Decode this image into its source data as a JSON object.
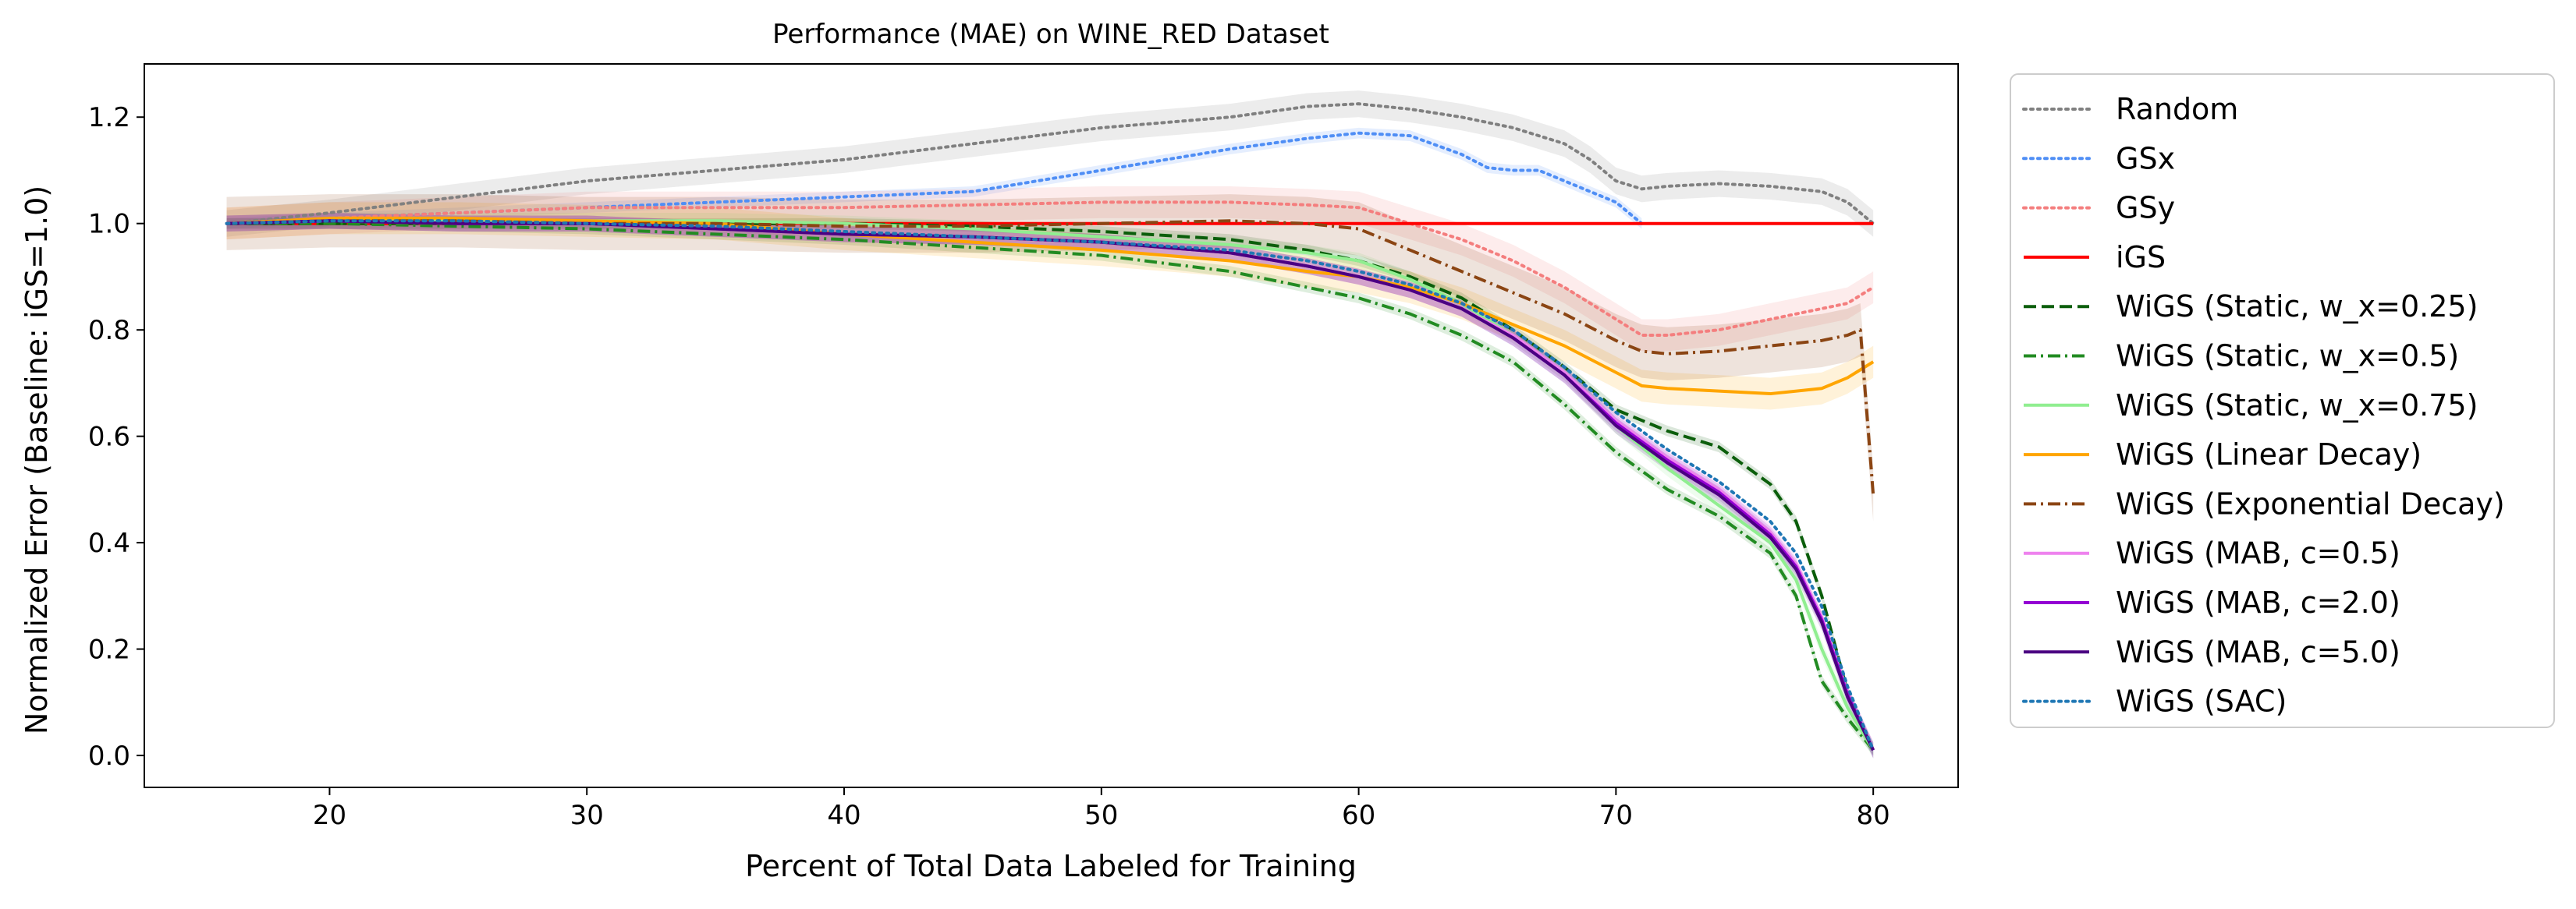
{
  "chart_data": {
    "type": "line",
    "title": "Performance (MAE) on WINE_RED Dataset",
    "xlabel": "Percent of Total Data Labeled for Training",
    "ylabel": "Normalized Error (Baseline: iGS=1.0)",
    "xlim": [
      12.8,
      83.3
    ],
    "ylim": [
      -0.06,
      1.3
    ],
    "xticks": [
      20,
      30,
      40,
      50,
      60,
      70,
      80
    ],
    "xtick_labels": [
      "20",
      "30",
      "40",
      "50",
      "60",
      "70",
      "80"
    ],
    "yticks": [
      0.0,
      0.2,
      0.4,
      0.6,
      0.8,
      1.0,
      1.2
    ],
    "ytick_labels": [
      "0.0",
      "0.2",
      "0.4",
      "0.6",
      "0.8",
      "1.0",
      "1.2"
    ],
    "grid": false,
    "legend_position": "outside-right",
    "series": [
      {
        "name": "Random",
        "color": "#808080",
        "style": "dotted",
        "band": 0.025,
        "x": [
          16,
          20,
          25,
          30,
          35,
          40,
          45,
          50,
          55,
          58,
          60,
          62,
          64,
          66,
          68,
          69,
          70,
          71,
          72,
          74,
          76,
          78,
          79,
          80
        ],
        "y": [
          1.0,
          1.02,
          1.05,
          1.08,
          1.1,
          1.12,
          1.15,
          1.18,
          1.2,
          1.22,
          1.225,
          1.215,
          1.2,
          1.18,
          1.15,
          1.12,
          1.08,
          1.065,
          1.07,
          1.075,
          1.07,
          1.06,
          1.04,
          1.0
        ]
      },
      {
        "name": "GSx",
        "color": "#4f8ef5",
        "style": "dotted",
        "band": 0.01,
        "x": [
          16,
          20,
          25,
          30,
          35,
          40,
          45,
          50,
          55,
          58,
          60,
          62,
          64,
          65,
          66,
          67,
          68,
          69,
          70,
          71
        ],
        "y": [
          1.0,
          1.01,
          1.02,
          1.03,
          1.04,
          1.05,
          1.06,
          1.1,
          1.14,
          1.16,
          1.17,
          1.165,
          1.13,
          1.105,
          1.1,
          1.1,
          1.08,
          1.06,
          1.04,
          1.0
        ]
      },
      {
        "name": "GSy",
        "color": "#f47e7e",
        "style": "dotted",
        "band": 0.03,
        "x": [
          16,
          20,
          25,
          30,
          35,
          40,
          45,
          50,
          55,
          58,
          60,
          62,
          64,
          66,
          68,
          70,
          71,
          72,
          74,
          76,
          78,
          79,
          80
        ],
        "y": [
          1.0,
          1.01,
          1.02,
          1.03,
          1.03,
          1.03,
          1.035,
          1.04,
          1.04,
          1.035,
          1.03,
          1.0,
          0.97,
          0.93,
          0.88,
          0.82,
          0.79,
          0.79,
          0.8,
          0.82,
          0.84,
          0.85,
          0.88
        ]
      },
      {
        "name": "iGS",
        "color": "#ff0000",
        "style": "solid",
        "band": 0,
        "x": [
          16,
          80
        ],
        "y": [
          1.0,
          1.0
        ]
      },
      {
        "name": "WiGS (Static, w_x=0.25)",
        "color": "#0b5e0b",
        "style": "dashed",
        "band": 0.01,
        "x": [
          16,
          20,
          25,
          30,
          35,
          40,
          45,
          50,
          55,
          58,
          60,
          62,
          64,
          66,
          68,
          70,
          72,
          74,
          76,
          77,
          78,
          79,
          80
        ],
        "y": [
          1.0,
          1.0,
          1.0,
          1.0,
          1.0,
          1.0,
          0.995,
          0.985,
          0.97,
          0.95,
          0.93,
          0.9,
          0.86,
          0.8,
          0.73,
          0.65,
          0.61,
          0.58,
          0.51,
          0.44,
          0.3,
          0.12,
          0.01
        ]
      },
      {
        "name": "WiGS (Static, w_x=0.5)",
        "color": "#228b22",
        "style": "dashdot",
        "band": 0.01,
        "x": [
          16,
          20,
          25,
          30,
          35,
          40,
          45,
          50,
          55,
          58,
          60,
          62,
          64,
          66,
          68,
          70,
          72,
          74,
          76,
          77,
          78,
          79,
          80
        ],
        "y": [
          1.0,
          1.0,
          0.995,
          0.99,
          0.98,
          0.97,
          0.955,
          0.94,
          0.91,
          0.88,
          0.86,
          0.83,
          0.79,
          0.74,
          0.66,
          0.57,
          0.5,
          0.45,
          0.38,
          0.3,
          0.14,
          0.07,
          0.01
        ]
      },
      {
        "name": "WiGS (Static, w_x=0.75)",
        "color": "#90ee90",
        "style": "solid",
        "band": 0.015,
        "x": [
          16,
          20,
          25,
          30,
          35,
          40,
          45,
          50,
          55,
          58,
          60,
          62,
          64,
          66,
          68,
          70,
          72,
          74,
          76,
          77,
          78,
          79,
          80
        ],
        "y": [
          1.0,
          1.005,
          1.005,
          1.005,
          1.005,
          1.0,
          0.99,
          0.975,
          0.96,
          0.945,
          0.93,
          0.895,
          0.85,
          0.79,
          0.72,
          0.62,
          0.54,
          0.47,
          0.4,
          0.33,
          0.2,
          0.09,
          0.01
        ]
      },
      {
        "name": "WiGS (Linear Decay)",
        "color": "#ffa500",
        "style": "solid",
        "band": 0.03,
        "x": [
          16,
          20,
          25,
          30,
          35,
          40,
          45,
          50,
          55,
          58,
          60,
          62,
          64,
          66,
          68,
          70,
          71,
          72,
          74,
          76,
          78,
          79,
          80
        ],
        "y": [
          1.0,
          1.01,
          1.01,
          1.005,
          1.0,
          0.98,
          0.965,
          0.95,
          0.93,
          0.91,
          0.9,
          0.88,
          0.85,
          0.81,
          0.77,
          0.72,
          0.695,
          0.69,
          0.685,
          0.68,
          0.69,
          0.71,
          0.74
        ]
      },
      {
        "name": "WiGS (Exponential Decay)",
        "color": "#8b4513",
        "style": "dashdot",
        "band": 0.05,
        "x": [
          16,
          20,
          25,
          30,
          35,
          40,
          45,
          50,
          55,
          58,
          60,
          62,
          64,
          66,
          68,
          70,
          71,
          72,
          74,
          76,
          78,
          79,
          79.5,
          80
        ],
        "y": [
          1.0,
          1.005,
          1.005,
          1.0,
          1.0,
          0.995,
          0.995,
          1.0,
          1.005,
          1.0,
          0.99,
          0.95,
          0.91,
          0.87,
          0.83,
          0.78,
          0.76,
          0.755,
          0.76,
          0.77,
          0.78,
          0.79,
          0.8,
          0.49
        ]
      },
      {
        "name": "WiGS (MAB, c=0.5)",
        "color": "#ee82ee",
        "style": "solid",
        "band": 0.015,
        "x": [
          16,
          20,
          25,
          30,
          35,
          40,
          45,
          50,
          55,
          58,
          60,
          62,
          64,
          66,
          68,
          70,
          72,
          74,
          76,
          77,
          78,
          79,
          80
        ],
        "y": [
          1.0,
          1.005,
          1.0,
          1.0,
          0.99,
          0.98,
          0.975,
          0.965,
          0.945,
          0.92,
          0.9,
          0.875,
          0.84,
          0.79,
          0.72,
          0.63,
          0.56,
          0.5,
          0.42,
          0.36,
          0.26,
          0.12,
          0.01
        ]
      },
      {
        "name": "WiGS (MAB, c=2.0)",
        "color": "#9400d3",
        "style": "solid",
        "band": 0.015,
        "x": [
          16,
          20,
          25,
          30,
          35,
          40,
          45,
          50,
          55,
          58,
          60,
          62,
          64,
          66,
          68,
          70,
          72,
          74,
          76,
          77,
          78,
          79,
          80
        ],
        "y": [
          1.0,
          1.005,
          1.0,
          1.0,
          0.99,
          0.98,
          0.975,
          0.965,
          0.945,
          0.92,
          0.9,
          0.875,
          0.84,
          0.785,
          0.715,
          0.625,
          0.555,
          0.495,
          0.415,
          0.355,
          0.255,
          0.115,
          0.01
        ]
      },
      {
        "name": "WiGS (MAB, c=5.0)",
        "color": "#4b0082",
        "style": "solid",
        "band": 0.015,
        "x": [
          16,
          20,
          25,
          30,
          35,
          40,
          45,
          50,
          55,
          58,
          60,
          62,
          64,
          66,
          68,
          70,
          72,
          74,
          76,
          77,
          78,
          79,
          80
        ],
        "y": [
          1.0,
          1.005,
          1.0,
          1.0,
          0.99,
          0.98,
          0.975,
          0.965,
          0.945,
          0.92,
          0.9,
          0.875,
          0.84,
          0.785,
          0.715,
          0.62,
          0.55,
          0.49,
          0.41,
          0.35,
          0.25,
          0.11,
          0.01
        ]
      },
      {
        "name": "WiGS (SAC)",
        "color": "#1f77b4",
        "style": "dotted",
        "band": 0,
        "x": [
          16,
          20,
          25,
          30,
          35,
          40,
          45,
          50,
          55,
          58,
          60,
          62,
          64,
          66,
          68,
          70,
          72,
          74,
          76,
          77,
          78,
          79,
          80
        ],
        "y": [
          1.0,
          1.005,
          1.005,
          1.0,
          0.995,
          0.985,
          0.975,
          0.965,
          0.95,
          0.93,
          0.91,
          0.885,
          0.85,
          0.8,
          0.73,
          0.645,
          0.575,
          0.515,
          0.44,
          0.38,
          0.28,
          0.13,
          0.01
        ]
      }
    ]
  }
}
